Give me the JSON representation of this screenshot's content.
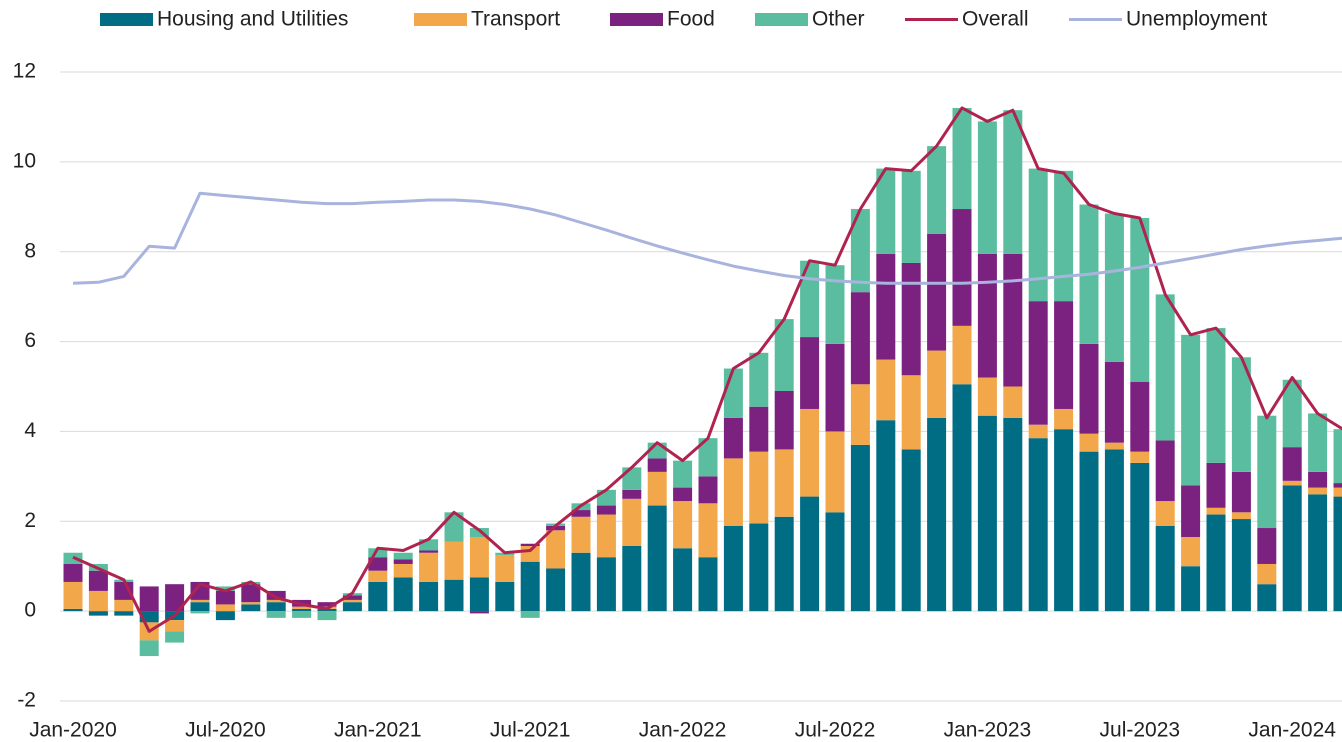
{
  "chart_data": {
    "type": "bar",
    "categories": [
      "Jan-2020",
      null,
      null,
      null,
      null,
      null,
      "Jul-2020",
      null,
      null,
      null,
      null,
      null,
      "Jan-2021",
      null,
      null,
      null,
      null,
      null,
      "Jul-2021",
      null,
      null,
      null,
      null,
      null,
      "Jan-2022",
      null,
      null,
      null,
      null,
      null,
      "Jul-2022",
      null,
      null,
      null,
      null,
      null,
      "Jan-2023",
      null,
      null,
      null,
      null,
      null,
      "Jul-2023",
      null,
      null,
      null,
      null,
      null,
      "Jan-2024",
      null,
      null
    ],
    "ylim": [
      -2,
      12
    ],
    "yticks": [
      -2,
      0,
      2,
      4,
      6,
      8,
      10,
      12
    ],
    "grid": true,
    "series": [
      {
        "name": "Housing and Utilities",
        "type": "bar",
        "color": "#006d84",
        "values": [
          0.05,
          -0.1,
          -0.1,
          -0.25,
          -0.2,
          0.2,
          -0.2,
          0.15,
          0.2,
          0.05,
          0.05,
          0.2,
          0.65,
          0.75,
          0.65,
          0.7,
          0.75,
          0.65,
          1.1,
          0.95,
          1.3,
          1.2,
          1.45,
          2.35,
          1.4,
          1.2,
          1.9,
          1.95,
          2.1,
          2.55,
          2.2,
          3.7,
          4.25,
          3.6,
          4.3,
          5.05,
          4.35,
          4.3,
          3.85,
          4.05,
          3.55,
          3.6,
          3.3,
          1.9,
          1.0,
          2.15,
          2.05,
          0.6,
          2.8,
          2.6,
          2.55
        ]
      },
      {
        "name": "Transport",
        "type": "bar",
        "color": "#f2a74b",
        "values": [
          0.6,
          0.45,
          0.25,
          -0.4,
          -0.25,
          0.05,
          0.15,
          0.05,
          0.05,
          0.05,
          0.05,
          0.05,
          0.25,
          0.3,
          0.65,
          0.85,
          0.9,
          0.6,
          0.35,
          0.85,
          0.8,
          0.95,
          1.05,
          0.75,
          1.05,
          1.2,
          1.5,
          1.6,
          1.5,
          1.95,
          1.8,
          1.35,
          1.35,
          1.65,
          1.5,
          1.3,
          0.85,
          0.7,
          0.3,
          0.45,
          0.4,
          0.15,
          0.25,
          0.55,
          0.65,
          0.15,
          0.15,
          0.45,
          0.1,
          0.15,
          0.2
        ]
      },
      {
        "name": "Food",
        "type": "bar",
        "color": "#7b2180",
        "values": [
          0.4,
          0.45,
          0.4,
          0.55,
          0.6,
          0.4,
          0.3,
          0.4,
          0.2,
          0.15,
          0.1,
          0.1,
          0.3,
          0.1,
          0.05,
          0.0,
          -0.05,
          0.0,
          0.05,
          0.1,
          0.15,
          0.2,
          0.2,
          0.3,
          0.3,
          0.6,
          0.9,
          1.0,
          1.3,
          1.6,
          1.95,
          2.05,
          2.35,
          2.5,
          2.6,
          2.6,
          2.75,
          2.95,
          2.75,
          2.4,
          2.0,
          1.8,
          1.55,
          1.35,
          1.15,
          1.0,
          0.9,
          0.8,
          0.75,
          0.35,
          0.1
        ]
      },
      {
        "name": "Other",
        "type": "bar",
        "color": "#5bbd9f",
        "values": [
          0.25,
          0.15,
          0.05,
          -0.35,
          -0.25,
          -0.05,
          0.1,
          0.05,
          -0.15,
          -0.15,
          -0.2,
          0.05,
          0.2,
          0.15,
          0.25,
          0.65,
          0.2,
          0.05,
          -0.15,
          0.05,
          0.15,
          0.35,
          0.5,
          0.35,
          0.6,
          0.85,
          1.1,
          1.2,
          1.6,
          1.7,
          1.75,
          1.85,
          1.9,
          2.05,
          1.95,
          2.25,
          2.95,
          3.2,
          2.95,
          2.9,
          3.1,
          3.3,
          3.65,
          3.25,
          3.35,
          3.0,
          2.55,
          2.5,
          1.5,
          1.3,
          1.2
        ]
      },
      {
        "name": "Overall",
        "type": "line",
        "color": "#b0234f",
        "values": [
          1.2,
          0.95,
          0.7,
          -0.45,
          -0.1,
          0.6,
          0.45,
          0.65,
          0.3,
          0.15,
          0.05,
          0.4,
          1.4,
          1.35,
          1.6,
          2.2,
          1.8,
          1.3,
          1.35,
          1.9,
          2.35,
          2.7,
          3.2,
          3.75,
          3.35,
          3.85,
          5.4,
          5.75,
          6.5,
          7.8,
          7.7,
          8.95,
          9.85,
          9.8,
          10.35,
          11.2,
          10.9,
          11.15,
          9.85,
          9.75,
          9.05,
          8.85,
          8.75,
          7.05,
          6.15,
          6.3,
          5.65,
          4.3,
          5.2,
          4.4,
          4.05
        ]
      },
      {
        "name": "Unemployment",
        "type": "line",
        "color": "#a8b4dd",
        "values": [
          7.3,
          7.32,
          7.45,
          8.12,
          8.08,
          9.3,
          9.25,
          9.2,
          9.15,
          9.1,
          9.07,
          9.07,
          9.1,
          9.12,
          9.15,
          9.15,
          9.12,
          9.05,
          8.95,
          8.82,
          8.65,
          8.48,
          8.3,
          8.13,
          7.97,
          7.82,
          7.68,
          7.57,
          7.47,
          7.4,
          7.35,
          7.32,
          7.3,
          7.3,
          7.3,
          7.3,
          7.32,
          7.35,
          7.4,
          7.45,
          7.5,
          7.57,
          7.65,
          7.75,
          7.85,
          7.95,
          8.05,
          8.13,
          8.2,
          8.25,
          8.3
        ]
      }
    ]
  }
}
